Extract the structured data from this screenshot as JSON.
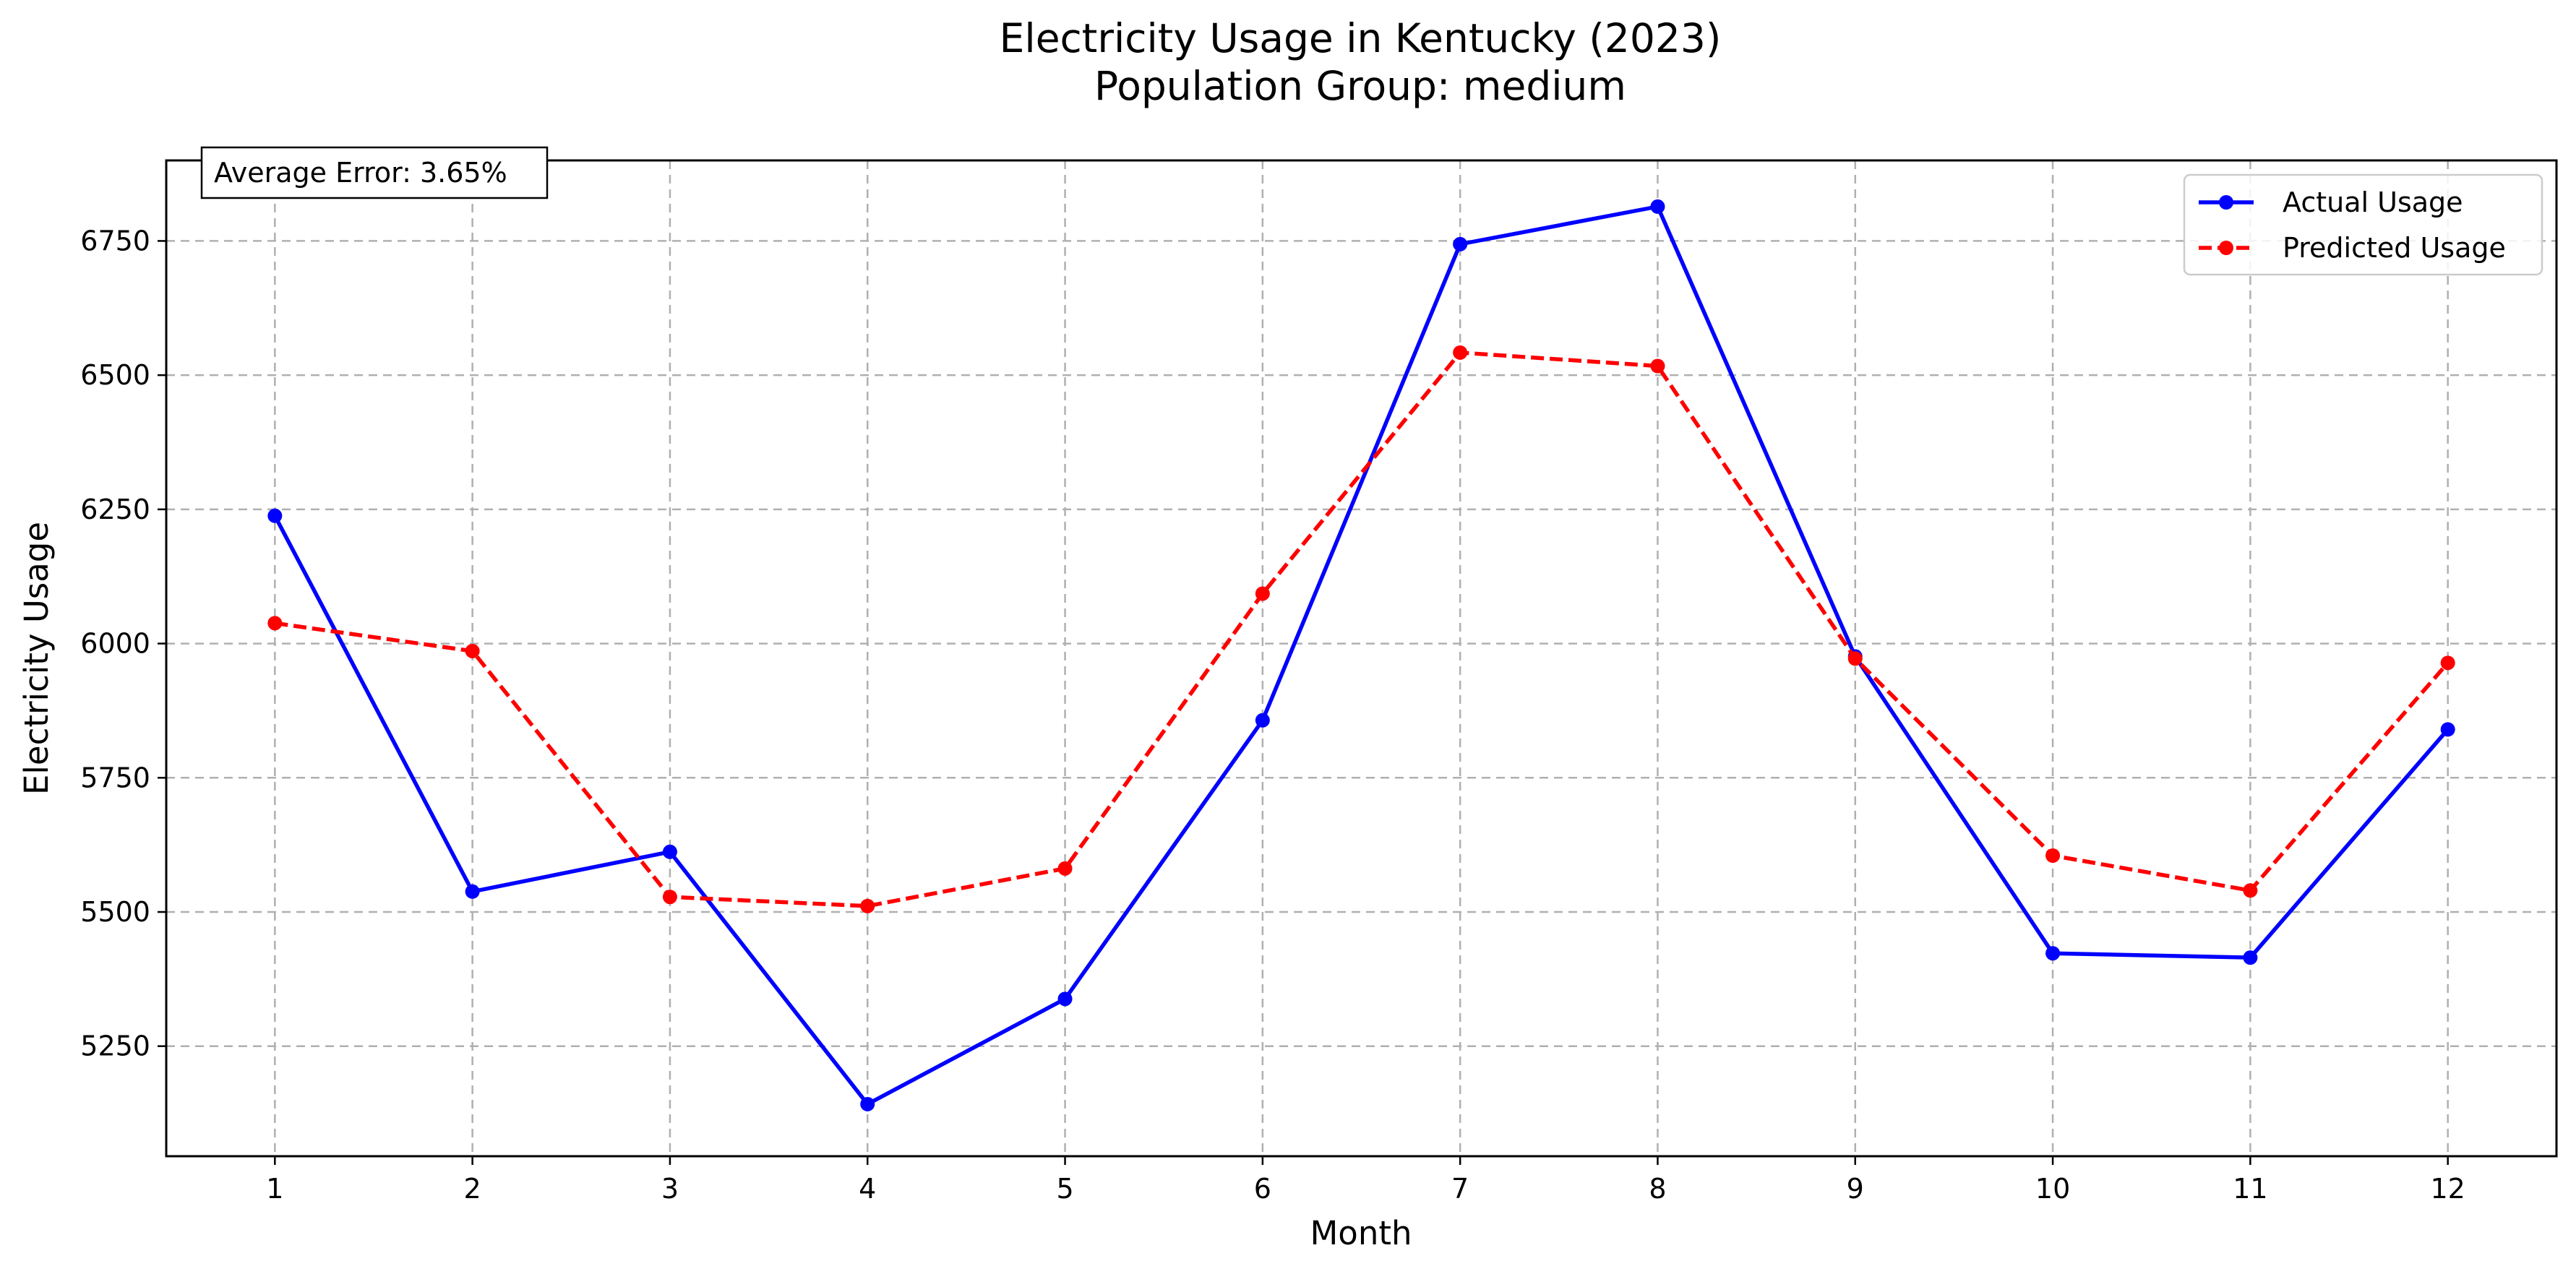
{
  "chart_data": {
    "type": "line",
    "title": "Electricity Usage in Kentucky (2023)",
    "subtitle": "Population Group: medium",
    "xlabel": "Month",
    "ylabel": "Electricity Usage",
    "x": [
      1,
      2,
      3,
      4,
      5,
      6,
      7,
      8,
      9,
      10,
      11,
      12
    ],
    "x_tick_labels": [
      "1",
      "2",
      "3",
      "4",
      "5",
      "6",
      "7",
      "8",
      "9",
      "10",
      "11",
      "12"
    ],
    "xlim": [
      0.45,
      12.55
    ],
    "ylim": [
      5045,
      6900
    ],
    "y_ticks": [
      5250,
      5500,
      5750,
      6000,
      6250,
      6500,
      6750
    ],
    "y_tick_labels": [
      "5250",
      "5500",
      "5750",
      "6000",
      "6250",
      "6500",
      "6750"
    ],
    "grid": true,
    "legend_position": "top-right",
    "series": [
      {
        "name": "Actual Usage",
        "color": "#0000ff",
        "line_style": "solid",
        "marker": "circle",
        "values": [
          6238,
          5538,
          5612,
          5142,
          5338,
          5857,
          6744,
          6814,
          5976,
          5423,
          5415,
          5840
        ]
      },
      {
        "name": "Predicted Usage",
        "color": "#ff0000",
        "line_style": "dashed",
        "marker": "circle",
        "values": [
          6038,
          5986,
          5528,
          5511,
          5581,
          6093,
          6542,
          6517,
          5972,
          5605,
          5540,
          5964
        ]
      }
    ],
    "annotation": "Average Error: 3.65%"
  }
}
